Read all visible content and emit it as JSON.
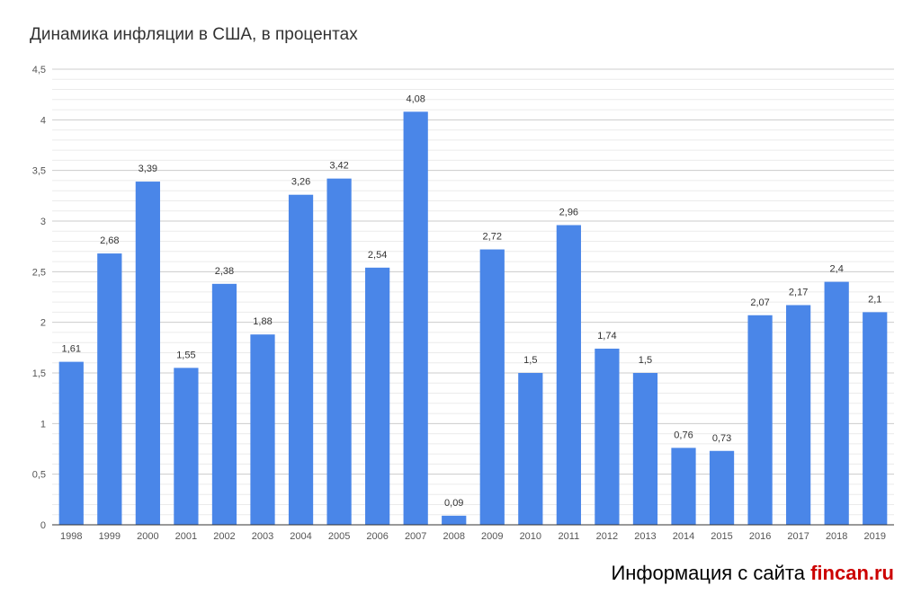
{
  "chart_data": {
    "type": "bar",
    "title": "Динамика инфляции в США, в процентах",
    "categories": [
      "1998",
      "1999",
      "2000",
      "2001",
      "2002",
      "2003",
      "2004",
      "2005",
      "2006",
      "2007",
      "2008",
      "2009",
      "2010",
      "2011",
      "2012",
      "2013",
      "2014",
      "2015",
      "2016",
      "2017",
      "2018",
      "2019"
    ],
    "values": [
      1.61,
      2.68,
      3.39,
      1.55,
      2.38,
      1.88,
      3.26,
      3.42,
      2.54,
      4.08,
      0.09,
      2.72,
      1.5,
      2.96,
      1.74,
      1.5,
      0.76,
      0.73,
      2.07,
      2.17,
      2.4,
      2.1
    ],
    "value_labels": [
      "1,61",
      "2,68",
      "3,39",
      "1,55",
      "2,38",
      "1,88",
      "3,26",
      "3,42",
      "2,54",
      "4,08",
      "0,09",
      "2,72",
      "1,5",
      "2,96",
      "1,74",
      "1,5",
      "0,76",
      "0,73",
      "2,07",
      "2,17",
      "2,4",
      "2,1"
    ],
    "y_ticks": [
      0,
      0.5,
      1,
      1.5,
      2,
      2.5,
      3,
      3.5,
      4,
      4.5
    ],
    "y_tick_labels": [
      "0",
      "0,5",
      "1",
      "1,5",
      "2",
      "2,5",
      "3",
      "3,5",
      "4",
      "4,5"
    ],
    "ylim": [
      0,
      4.5
    ],
    "grid": true,
    "bar_color": "#4a86e8",
    "grid_color": "#d9d9d9"
  },
  "footer": {
    "prefix": "Информация с сайта ",
    "site": "fincan.ru",
    "site_color": "#cc0000"
  }
}
